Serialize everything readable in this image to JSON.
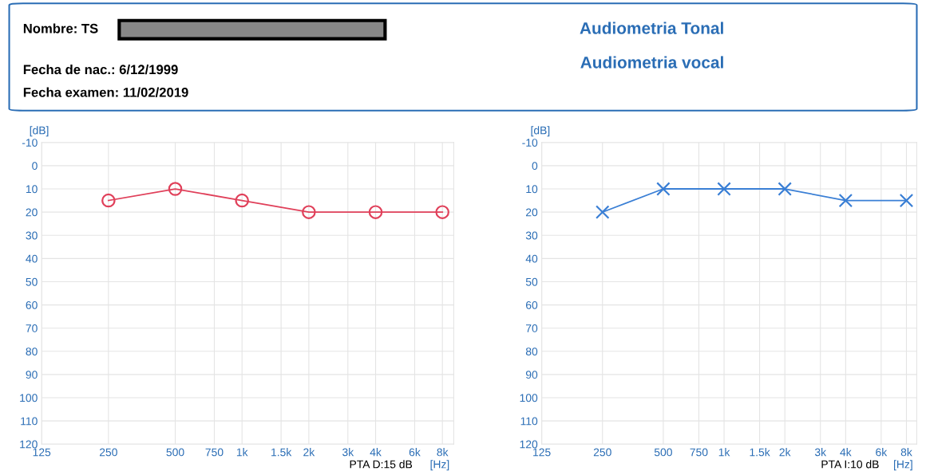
{
  "chart_data": [
    {
      "type": "other",
      "title": "Audiometria Tonal",
      "subtitle": "Audiometria vocal",
      "annotations": [
        "Nombre: TS",
        "Fecha de nac.: 6/12/1999",
        "Fecha examen: 11/02/2019"
      ]
    },
    {
      "type": "line",
      "x": [
        250,
        500,
        1000,
        2000,
        4000,
        8000
      ],
      "series": [
        {
          "color": "#e0405a",
          "values": [
            15,
            10,
            15,
            20,
            20,
            20
          ]
        }
      ],
      "marker": "circle",
      "line_style": "solid",
      "grid": true,
      "log": "x",
      "ylabel": "[dB]",
      "xlabel": "[Hz]",
      "annotations": [
        "PTA D:15 dB"
      ],
      "xlim": [
        125,
        9000
      ],
      "ylim": [
        120,
        -10
      ],
      "xticks": [
        125,
        250,
        500,
        750,
        {
          "value": 1000,
          "label": "1k"
        },
        {
          "value": 1500,
          "label": "1.5k"
        },
        {
          "value": 2000,
          "label": "2k"
        },
        {
          "value": 3000,
          "label": "3k"
        },
        {
          "value": 4000,
          "label": "4k"
        },
        {
          "value": 6000,
          "label": "6k"
        },
        {
          "value": 8000,
          "label": "8k"
        }
      ],
      "yticks": [
        -10,
        0,
        10,
        20,
        30,
        40,
        50,
        60,
        70,
        80,
        90,
        100,
        110,
        120
      ]
    },
    {
      "type": "line",
      "x": [
        250,
        500,
        1000,
        2000,
        4000,
        8000
      ],
      "series": [
        {
          "color": "#3a7fd5",
          "values": [
            20,
            10,
            10,
            10,
            15,
            15
          ]
        }
      ],
      "marker": "cross",
      "line_style": "solid",
      "grid": true,
      "log": "x",
      "ylabel": "[dB]",
      "xlabel": "[Hz]",
      "annotations": [
        "PTA I:10 dB"
      ],
      "xlim": [
        125,
        9000
      ],
      "ylim": [
        120,
        -10
      ],
      "xticks": [
        125,
        250,
        500,
        750,
        {
          "value": 1000,
          "label": "1k"
        },
        {
          "value": 1500,
          "label": "1.5k"
        },
        {
          "value": 2000,
          "label": "2k"
        },
        {
          "value": 3000,
          "label": "3k"
        },
        {
          "value": 4000,
          "label": "4k"
        },
        {
          "value": 6000,
          "label": "6k"
        },
        {
          "value": 8000,
          "label": "8k"
        }
      ],
      "yticks": [
        -10,
        0,
        10,
        20,
        30,
        40,
        50,
        60,
        70,
        80,
        90,
        100,
        110,
        120
      ]
    }
  ]
}
